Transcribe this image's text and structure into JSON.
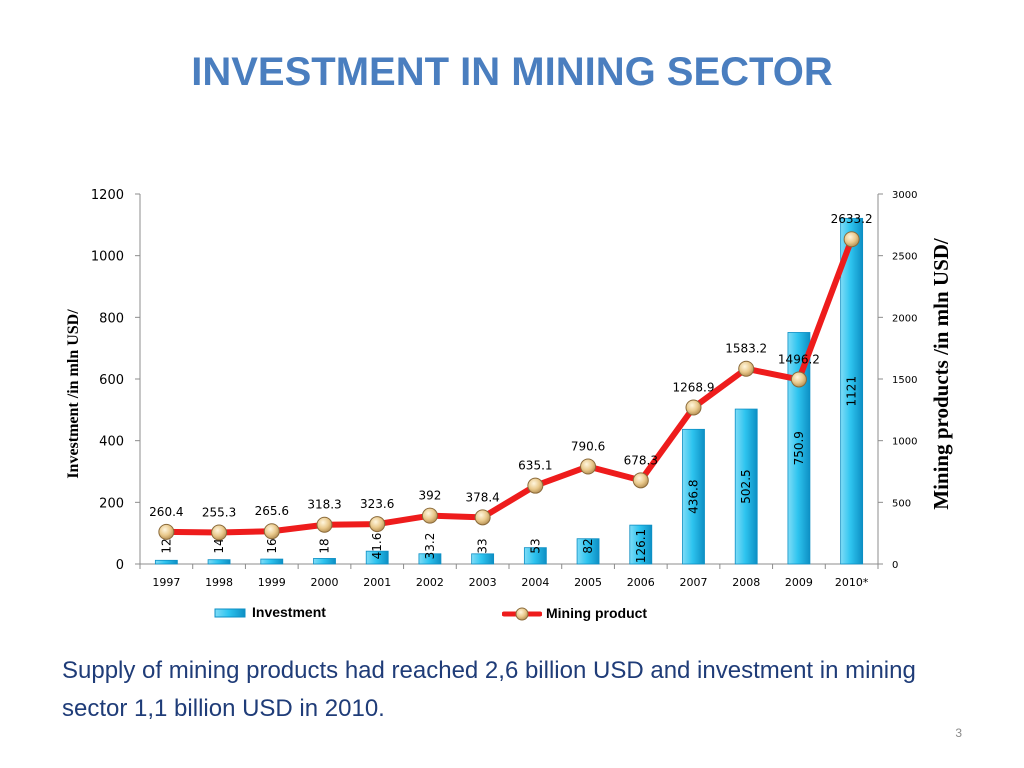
{
  "slide": {
    "title": "INVESTMENT IN MINING SECTOR",
    "caption": "Supply of mining products had reached 2,6 billion USD and investment in mining sector 1,1 billion USD in 2010.",
    "page_number": "3"
  },
  "chart_data": {
    "type": "bar+line",
    "categories": [
      "1997",
      "1998",
      "1999",
      "2000",
      "2001",
      "2002",
      "2003",
      "2004",
      "2005",
      "2006",
      "2007",
      "2008",
      "2009",
      "2010*"
    ],
    "series": [
      {
        "name": "Investment",
        "type": "bar",
        "axis": "left",
        "values": [
          12,
          14,
          16,
          18,
          41.6,
          33.2,
          33,
          53,
          82,
          126.1,
          436.8,
          502.5,
          750.9,
          1121
        ],
        "labels": [
          "12",
          "14",
          "16",
          "18",
          "41.6",
          "33.2",
          "33",
          "53",
          "82",
          "126.1",
          "436.8",
          "502.5",
          "750.9",
          "1121"
        ],
        "color": "#2ec4ef"
      },
      {
        "name": "Mining product",
        "type": "line",
        "axis": "right",
        "values": [
          260.4,
          255.3,
          265.6,
          318.3,
          323.6,
          392,
          378.4,
          635.1,
          790.6,
          678.3,
          1268.9,
          1583.2,
          1496.2,
          2633.2
        ],
        "labels": [
          "260.4",
          "255.3",
          "265.6",
          "318.3",
          "323.6",
          "392",
          "378.4",
          "635.1",
          "790.6",
          "678.3",
          "1268.9",
          "1583.2",
          "1496.2",
          "2633.2"
        ],
        "color": "#ee1c1c",
        "marker_color": "#e9c98c"
      }
    ],
    "y_left": {
      "label": "Investment /in mln USD/",
      "range": [
        0,
        1200
      ],
      "ticks": [
        "0",
        "200",
        "400",
        "600",
        "800",
        "1000",
        "1200"
      ]
    },
    "y_right": {
      "label": "Mining products /in mln USD/",
      "range": [
        0,
        3000
      ],
      "ticks": [
        "0",
        "500",
        "1000",
        "1500",
        "2000",
        "2500",
        "3000"
      ]
    },
    "legend": {
      "placement": "bottom",
      "items": [
        "Investment",
        "Mining product"
      ]
    },
    "grid": false
  }
}
